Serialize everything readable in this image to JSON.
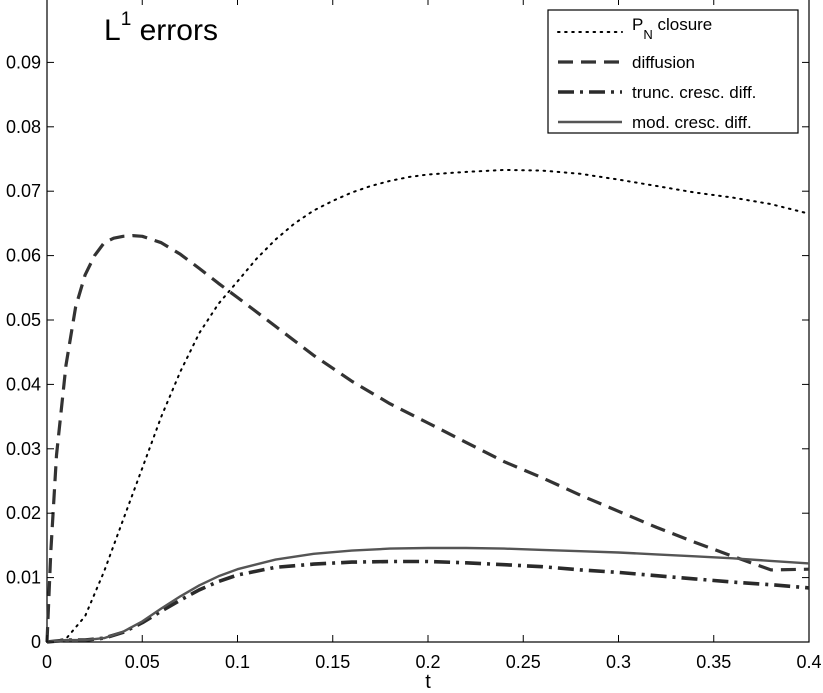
{
  "chart_data": {
    "type": "line",
    "title": "L",
    "title_superscript": "1",
    "title_suffix": " errors",
    "xlabel": "t",
    "ylabel": "",
    "xlim": [
      0,
      0.4
    ],
    "ylim": [
      0,
      0.1
    ],
    "x_ticks": [
      0,
      0.05,
      0.1,
      0.15,
      0.2,
      0.25,
      0.3,
      0.35,
      0.4
    ],
    "x_tick_labels": [
      "0",
      "0.05",
      "0.1",
      "0.15",
      "0.2",
      "0.25",
      "0.3",
      "0.35",
      "0.4"
    ],
    "y_ticks": [
      0,
      0.01,
      0.02,
      0.03,
      0.04,
      0.05,
      0.06,
      0.07,
      0.08,
      0.09
    ],
    "y_tick_labels": [
      "0",
      "0.01",
      "0.02",
      "0.03",
      "0.04",
      "0.05",
      "0.06",
      "0.07",
      "0.08",
      "0.09"
    ],
    "grid": false,
    "legend_position": "top-right",
    "series": [
      {
        "name": "P",
        "name_subscript": "N",
        "name_suffix": " closure",
        "style": "dotted",
        "color": "#000000",
        "x": [
          0,
          0.01,
          0.02,
          0.03,
          0.04,
          0.05,
          0.06,
          0.07,
          0.08,
          0.09,
          0.1,
          0.11,
          0.12,
          0.13,
          0.14,
          0.15,
          0.16,
          0.17,
          0.18,
          0.19,
          0.2,
          0.22,
          0.24,
          0.26,
          0.28,
          0.3,
          0.32,
          0.34,
          0.36,
          0.38,
          0.4
        ],
        "y": [
          0,
          0.0005,
          0.004,
          0.011,
          0.019,
          0.027,
          0.035,
          0.042,
          0.048,
          0.0525,
          0.056,
          0.0595,
          0.0625,
          0.065,
          0.067,
          0.0685,
          0.0698,
          0.0708,
          0.0716,
          0.0722,
          0.0726,
          0.073,
          0.0733,
          0.0732,
          0.0727,
          0.0718,
          0.0708,
          0.0698,
          0.069,
          0.068,
          0.0665
        ]
      },
      {
        "name": "diffusion",
        "style": "dashed",
        "color": "#333333",
        "x": [
          0,
          0.002,
          0.005,
          0.01,
          0.015,
          0.02,
          0.025,
          0.03,
          0.035,
          0.04,
          0.045,
          0.05,
          0.06,
          0.07,
          0.08,
          0.09,
          0.1,
          0.12,
          0.14,
          0.16,
          0.18,
          0.2,
          0.22,
          0.24,
          0.26,
          0.28,
          0.3,
          0.32,
          0.34,
          0.36,
          0.38,
          0.4
        ],
        "y": [
          0,
          0.014,
          0.029,
          0.043,
          0.052,
          0.057,
          0.06,
          0.062,
          0.0627,
          0.063,
          0.0631,
          0.063,
          0.062,
          0.0602,
          0.058,
          0.0557,
          0.0535,
          0.049,
          0.0445,
          0.0405,
          0.037,
          0.034,
          0.031,
          0.028,
          0.0255,
          0.0228,
          0.0203,
          0.0178,
          0.0155,
          0.0133,
          0.0112,
          0.0113
        ]
      },
      {
        "name": "trunc. cresc. diff.",
        "style": "dash-dot",
        "color": "#2a2a2a",
        "x": [
          0,
          0.01,
          0.02,
          0.03,
          0.04,
          0.05,
          0.06,
          0.07,
          0.08,
          0.09,
          0.1,
          0.12,
          0.14,
          0.16,
          0.18,
          0.2,
          0.22,
          0.24,
          0.26,
          0.28,
          0.3,
          0.32,
          0.34,
          0.36,
          0.38,
          0.4
        ],
        "y": [
          0,
          0.0003,
          0.0003,
          0.0006,
          0.0015,
          0.003,
          0.0048,
          0.0065,
          0.0081,
          0.0094,
          0.0104,
          0.0116,
          0.0121,
          0.0124,
          0.0125,
          0.0125,
          0.0123,
          0.012,
          0.0117,
          0.0112,
          0.0108,
          0.0103,
          0.0098,
          0.0093,
          0.0089,
          0.0084
        ]
      },
      {
        "name": "mod. cresc. diff.",
        "style": "solid",
        "color": "#555555",
        "x": [
          0,
          0.01,
          0.02,
          0.03,
          0.04,
          0.05,
          0.06,
          0.07,
          0.08,
          0.09,
          0.1,
          0.12,
          0.14,
          0.16,
          0.18,
          0.2,
          0.22,
          0.24,
          0.26,
          0.28,
          0.3,
          0.32,
          0.34,
          0.36,
          0.38,
          0.4
        ],
        "y": [
          0,
          0.0003,
          0.0003,
          0.0006,
          0.0016,
          0.0032,
          0.0052,
          0.0071,
          0.0088,
          0.0102,
          0.0113,
          0.0128,
          0.0137,
          0.0142,
          0.0145,
          0.0146,
          0.0146,
          0.0145,
          0.0143,
          0.0141,
          0.0139,
          0.0136,
          0.0133,
          0.013,
          0.0126,
          0.0122
        ]
      }
    ]
  }
}
